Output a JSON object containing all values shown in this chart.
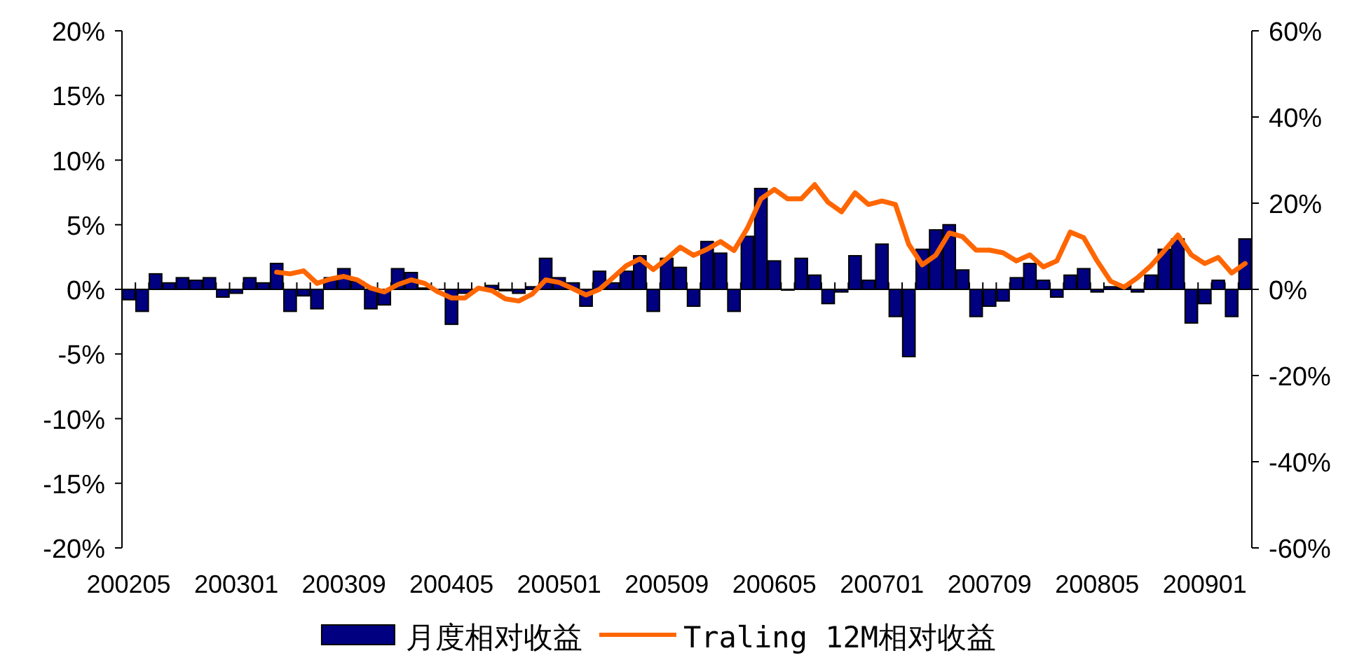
{
  "chart_data": {
    "type": "bar",
    "categories": [
      "200205",
      null,
      null,
      null,
      null,
      null,
      null,
      null,
      "200301",
      null,
      null,
      null,
      null,
      null,
      null,
      null,
      "200309",
      null,
      null,
      null,
      null,
      null,
      null,
      null,
      "200405",
      null,
      null,
      null,
      null,
      null,
      null,
      null,
      "200501",
      null,
      null,
      null,
      null,
      null,
      null,
      null,
      "200509",
      null,
      null,
      null,
      null,
      null,
      null,
      null,
      "200605",
      null,
      null,
      null,
      null,
      null,
      null,
      null,
      "200701",
      null,
      null,
      null,
      null,
      null,
      null,
      null,
      "200709",
      null,
      null,
      null,
      null,
      null,
      null,
      null,
      "200805",
      null,
      null,
      null,
      null,
      null,
      null,
      null,
      "200901",
      null,
      null,
      null
    ],
    "series": [
      {
        "name": "月度相对收益",
        "color": "#000080",
        "values": [
          -0.8,
          -1.7,
          1.2,
          0.5,
          0.9,
          0.7,
          0.9,
          -0.6,
          -0.3,
          0.9,
          0.5,
          2.0,
          -1.7,
          -0.5,
          -1.5,
          0.9,
          1.6,
          0.6,
          -1.5,
          -1.2,
          1.6,
          1.3,
          0.1,
          null,
          -2.7,
          -0.3,
          null,
          0.3,
          -0.1,
          -0.3,
          0.2,
          2.4,
          0.9,
          0.5,
          -1.3,
          1.4,
          0.5,
          1.4,
          2.6,
          -1.7,
          2.4,
          1.7,
          -1.3,
          3.7,
          2.8,
          -1.7,
          4.1,
          7.8,
          2.2,
          0,
          2.4,
          1.1,
          -1.1,
          -0.2,
          2.6,
          0.7,
          3.5,
          -2.1,
          -5.2,
          3.1,
          4.6,
          5.0,
          1.5,
          -2.1,
          -1.3,
          -0.9,
          0.9,
          2.0,
          0.7,
          -0.6,
          1.1,
          1.6,
          -0.2,
          0.2,
          0.2,
          -0.2,
          1.1,
          3.1,
          3.9,
          -2.6,
          -1.1,
          0.7,
          -2.1,
          3.9
        ]
      },
      {
        "name": "Traling 12M相对收益",
        "type": "line",
        "axis": "y2",
        "color": "#ff6600",
        "values": [
          null,
          null,
          null,
          null,
          null,
          null,
          null,
          null,
          null,
          null,
          null,
          4.0,
          3.6,
          4.3,
          1.4,
          2.4,
          3.0,
          2.2,
          0.3,
          -0.6,
          1.1,
          2.2,
          1.4,
          -0.6,
          -2.0,
          -2.0,
          0.3,
          -0.3,
          -2.2,
          -2.7,
          -1.1,
          2.2,
          1.6,
          0.2,
          -1.3,
          0,
          2.7,
          5.5,
          7.1,
          4.6,
          7.1,
          9.8,
          7.9,
          9.3,
          11.1,
          9.0,
          14.2,
          21.0,
          23.2,
          21.0,
          21.0,
          24.3,
          20.2,
          18.0,
          22.4,
          19.7,
          20.5,
          19.7,
          10.4,
          5.7,
          7.9,
          13.1,
          12.2,
          9.1,
          9.1,
          8.5,
          6.6,
          8.0,
          5.2,
          6.6,
          13.3,
          12.0,
          6.6,
          1.9,
          0.5,
          2.7,
          5.5,
          9.0,
          12.6,
          8.0,
          6.0,
          7.4,
          3.8,
          6.0
        ]
      }
    ],
    "ylim": [
      -20,
      20
    ],
    "yticks": [
      {
        "value": -20,
        "label": "-20%"
      },
      {
        "value": -15,
        "label": "-15%"
      },
      {
        "value": -10,
        "label": "-10%"
      },
      {
        "value": -5,
        "label": "-5%"
      },
      {
        "value": 0,
        "label": "0%"
      },
      {
        "value": 5,
        "label": "5%"
      },
      {
        "value": 10,
        "label": "10%"
      },
      {
        "value": 15,
        "label": "15%"
      },
      {
        "value": 20,
        "label": "20%"
      }
    ],
    "y2lim": [
      -60,
      60
    ],
    "y2ticks": [
      {
        "value": -60,
        "label": "-60%"
      },
      {
        "value": -40,
        "label": "-40%"
      },
      {
        "value": -20,
        "label": "-20%"
      },
      {
        "value": 0,
        "label": "0%"
      },
      {
        "value": 20,
        "label": "20%"
      },
      {
        "value": 40,
        "label": "40%"
      },
      {
        "value": 60,
        "label": "60%"
      }
    ],
    "legend": "bottom"
  }
}
